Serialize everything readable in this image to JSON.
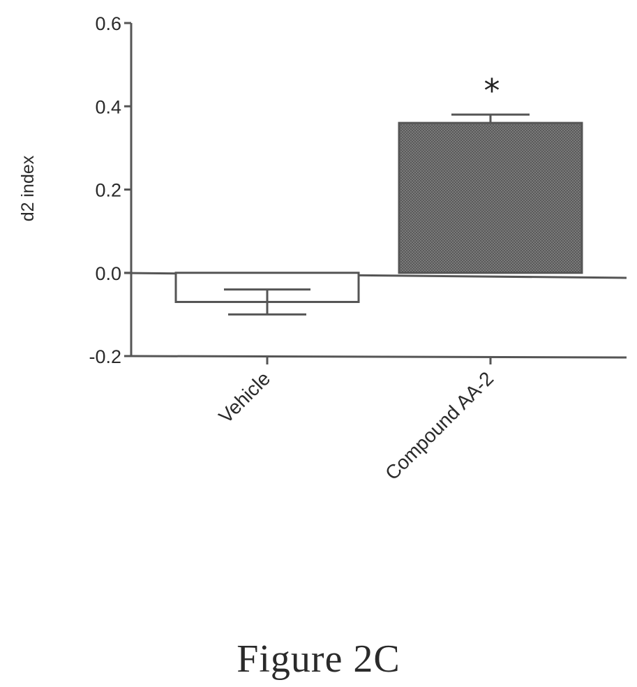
{
  "chart_data": {
    "type": "bar",
    "categories": [
      "Vehicle",
      "Compound AA-2"
    ],
    "values": [
      -0.07,
      0.36
    ],
    "error": [
      0.03,
      0.02
    ],
    "significance": [
      "",
      "*"
    ],
    "ylabel": "d2 index",
    "ylim": [
      -0.2,
      0.6
    ],
    "yticks": [
      -0.2,
      0.0,
      0.2,
      0.4,
      0.6
    ],
    "ytick_labels": [
      "-0.2",
      "0.0",
      "0.2",
      "0.4",
      "0.6"
    ],
    "bar_colors": [
      "#ffffff",
      "#6e6e6e"
    ],
    "grid": false
  },
  "caption": "Figure 2C"
}
